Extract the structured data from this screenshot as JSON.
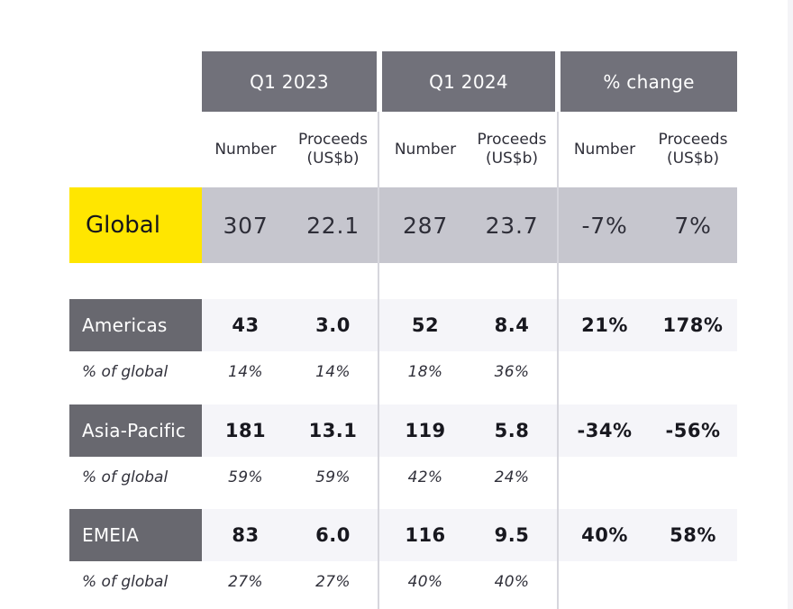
{
  "table": {
    "col_groups": [
      {
        "label": "Q1 2023"
      },
      {
        "label": "Q1 2024"
      },
      {
        "label": "% change"
      }
    ],
    "sub_headers": {
      "number": "Number",
      "proceeds": "Proceeds",
      "proceeds_unit": "(US$b)"
    },
    "global_row": {
      "label": "Global",
      "values": [
        "307",
        "22.1",
        "287",
        "23.7",
        "-7%",
        "7%"
      ]
    },
    "regions": [
      {
        "label": "Americas",
        "values": [
          "43",
          "3.0",
          "52",
          "8.4",
          "21%",
          "178%"
        ],
        "pct_label": "% of global",
        "pct_values": [
          "14%",
          "14%",
          "18%",
          "36%"
        ]
      },
      {
        "label": "Asia-Pacific",
        "values": [
          "181",
          "13.1",
          "119",
          "5.8",
          "-34%",
          "-56%"
        ],
        "pct_label": "% of global",
        "pct_values": [
          "59%",
          "59%",
          "42%",
          "24%"
        ]
      },
      {
        "label": "EMEIA",
        "values": [
          "83",
          "6.0",
          "116",
          "9.5",
          "40%",
          "58%"
        ],
        "pct_label": "% of global",
        "pct_values": [
          "27%",
          "27%",
          "40%",
          "40%"
        ]
      }
    ],
    "colors": {
      "accent_yellow": "#ffe600",
      "header_gray": "#71717a",
      "region_label_gray": "#68686f",
      "global_band_gray": "#c6c6ce",
      "row_light_gray": "#f5f5f9",
      "divider_gray": "#d6d6dd",
      "text_dark": "#2e2e38"
    }
  }
}
